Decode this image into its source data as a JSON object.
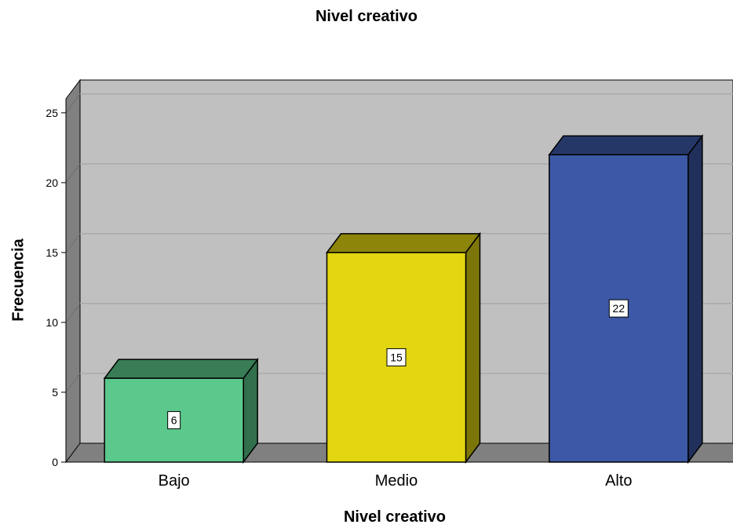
{
  "chart_data": {
    "type": "bar",
    "title": "Nivel creativo",
    "xlabel": "Nivel creativo",
    "ylabel": "Frecuencia",
    "categories": [
      "Bajo",
      "Medio",
      "Alto"
    ],
    "values": [
      6,
      15,
      22
    ],
    "data_labels": [
      "6",
      "15",
      "22"
    ],
    "colors": [
      "#5bc98b",
      "#e1d610",
      "#3c58a6"
    ],
    "ylim": [
      0,
      26
    ],
    "yticks": [
      0,
      5,
      10,
      15,
      20,
      25
    ],
    "grid": true,
    "style": "3d"
  }
}
